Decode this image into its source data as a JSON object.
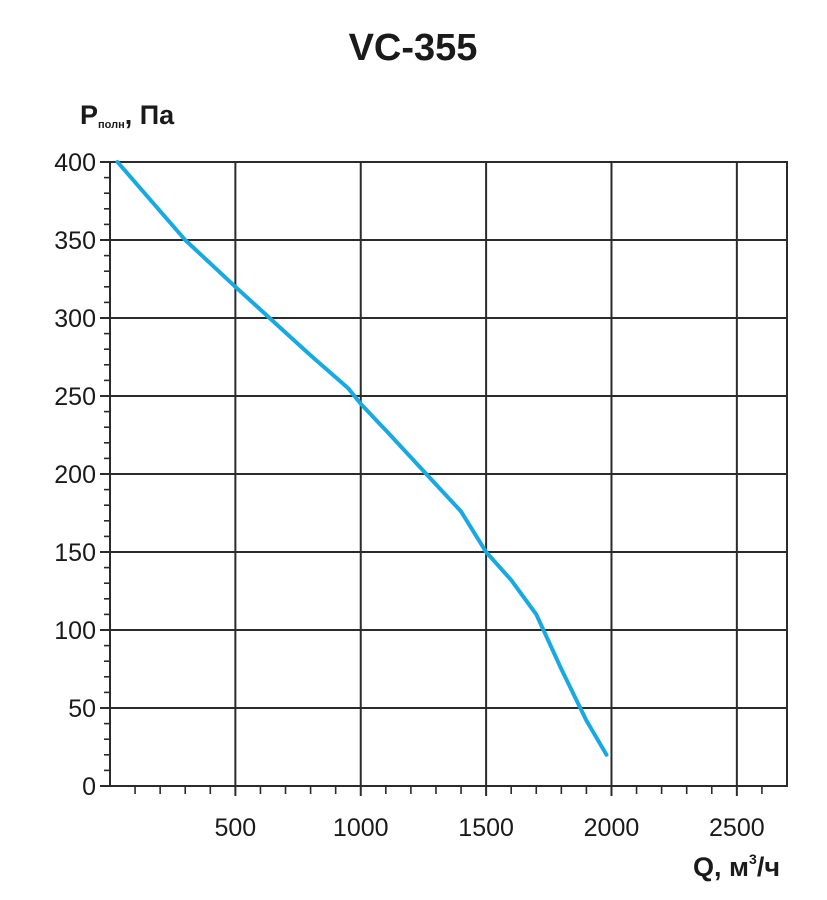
{
  "chart_data": {
    "type": "line",
    "title": "VC-355",
    "ylabel": {
      "main": "P",
      "sub": "полн",
      "unit": ", Па"
    },
    "xlabel": {
      "prefix": "Q, м",
      "sup": "3",
      "suffix": "/ч"
    },
    "xlim": [
      0,
      2700
    ],
    "ylim": [
      0,
      400
    ],
    "x_ticks": [
      500,
      1000,
      1500,
      2000,
      2500
    ],
    "y_ticks": [
      0,
      50,
      100,
      150,
      200,
      250,
      300,
      350,
      400
    ],
    "grid": true,
    "series": [
      {
        "color": "#19a9e1",
        "x": [
          30,
          300,
          500,
          650,
          800,
          950,
          1000,
          1100,
          1250,
          1400,
          1500,
          1600,
          1700,
          1800,
          1900,
          1980
        ],
        "y": [
          400,
          350,
          320,
          298,
          276,
          255,
          245,
          228,
          202,
          176,
          150,
          132,
          110,
          75,
          42,
          20
        ]
      }
    ]
  }
}
